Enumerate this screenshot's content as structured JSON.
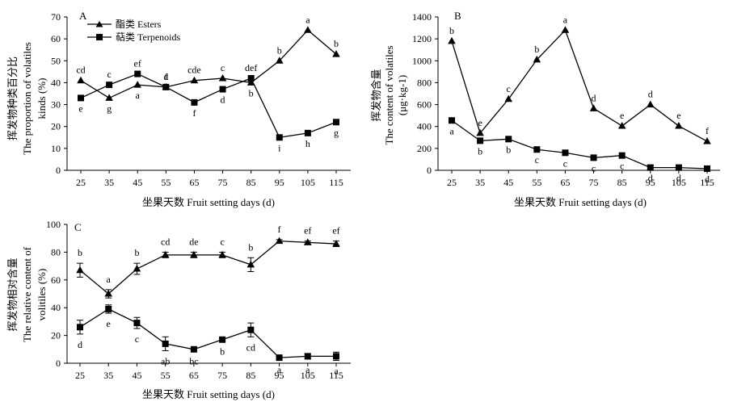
{
  "legend": {
    "esters": "酯类 Esters",
    "terpenoids": "萜类 Terpenoids"
  },
  "chart_data": [
    {
      "panel": "A",
      "type": "line",
      "x": [
        25,
        35,
        45,
        55,
        65,
        75,
        85,
        95,
        105,
        115
      ],
      "xticks": [
        "25",
        "35",
        "45",
        "55",
        "65",
        "75",
        "85",
        "95",
        "105",
        "115"
      ],
      "xlabel": "坐果天数 Fruit setting days (d)",
      "ylabel_lines": [
        "挥发物种类百分比",
        "The proportion of volatiles",
        "kinds (%)"
      ],
      "ylim": [
        0,
        70
      ],
      "yticks": [
        0,
        10,
        20,
        30,
        40,
        50,
        60,
        70
      ],
      "legend_position": "top-left",
      "series": [
        {
          "name": "酯类 Esters",
          "marker": "triangle",
          "values": [
            41,
            33,
            39,
            38,
            41,
            42,
            40,
            50,
            64,
            53
          ],
          "letters": [
            "cd",
            "g",
            "a",
            "f",
            "cde",
            "c",
            "b",
            "b",
            "a",
            "b"
          ]
        },
        {
          "name": "萜类 Terpenoids",
          "marker": "square",
          "values": [
            33,
            39,
            44,
            38,
            31,
            37,
            42,
            15,
            17,
            22
          ],
          "letters": [
            "e",
            "c",
            "ef",
            "d",
            "f",
            "d",
            "def",
            "i",
            "h",
            "g"
          ]
        }
      ]
    },
    {
      "panel": "B",
      "type": "line",
      "x": [
        25,
        35,
        45,
        55,
        65,
        75,
        85,
        95,
        105,
        115
      ],
      "xticks": [
        "25",
        "35",
        "45",
        "55",
        "65",
        "75",
        "85",
        "95",
        "105",
        "115"
      ],
      "xlabel": "坐果天数 Fruit setting days (d)",
      "ylabel_lines": [
        "挥发物含量",
        "The content of volatiles",
        "(μg·kg-1)"
      ],
      "ylim": [
        0,
        1400
      ],
      "yticks": [
        0,
        200,
        400,
        600,
        800,
        1000,
        1200,
        1400
      ],
      "series": [
        {
          "name": "酯类 Esters",
          "marker": "triangle",
          "values": [
            1180,
            340,
            650,
            1010,
            1280,
            565,
            405,
            600,
            405,
            265
          ],
          "letters": [
            "b",
            "e",
            "c",
            "b",
            "a",
            "d",
            "e",
            "d",
            "e",
            "f"
          ]
        },
        {
          "name": "萜类 Terpenoids",
          "marker": "square",
          "values": [
            455,
            270,
            285,
            190,
            160,
            115,
            135,
            25,
            25,
            15
          ],
          "letters": [
            "a",
            "b",
            "b",
            "c",
            "c",
            "c",
            "c",
            "d",
            "d",
            "d"
          ]
        }
      ]
    },
    {
      "panel": "C",
      "type": "line",
      "x": [
        25,
        35,
        45,
        55,
        65,
        75,
        85,
        95,
        105,
        115
      ],
      "xticks": [
        "25",
        "35",
        "45",
        "55",
        "65",
        "75",
        "85",
        "95",
        "105",
        "115"
      ],
      "xlabel": "坐果天数 Fruit setting days (d)",
      "ylabel_lines": [
        "挥发物相对含量",
        "The relative content of",
        "volitiles (%)"
      ],
      "ylim": [
        0,
        100
      ],
      "yticks": [
        0,
        20,
        40,
        60,
        80,
        100
      ],
      "series": [
        {
          "name": "酯类 Esters",
          "marker": "triangle",
          "values": [
            67,
            50,
            68,
            78,
            78,
            78,
            71,
            88,
            87,
            86
          ],
          "errors": [
            5,
            3,
            4,
            2,
            2,
            2,
            5,
            1,
            1,
            2
          ],
          "letters": [
            "b",
            "a",
            "b",
            "cd",
            "de",
            "c",
            "b",
            "f",
            "ef",
            "ef"
          ]
        },
        {
          "name": "萜类 Terpenoids",
          "marker": "square",
          "values": [
            26,
            39,
            29,
            14,
            10,
            17,
            24,
            4,
            5,
            5
          ],
          "errors": [
            5,
            3,
            4,
            5,
            1,
            1,
            5,
            1,
            2,
            3
          ],
          "letters": [
            "d",
            "e",
            "c",
            "ab",
            "bc",
            "b",
            "cd",
            "a",
            "a",
            "a"
          ]
        }
      ]
    }
  ]
}
